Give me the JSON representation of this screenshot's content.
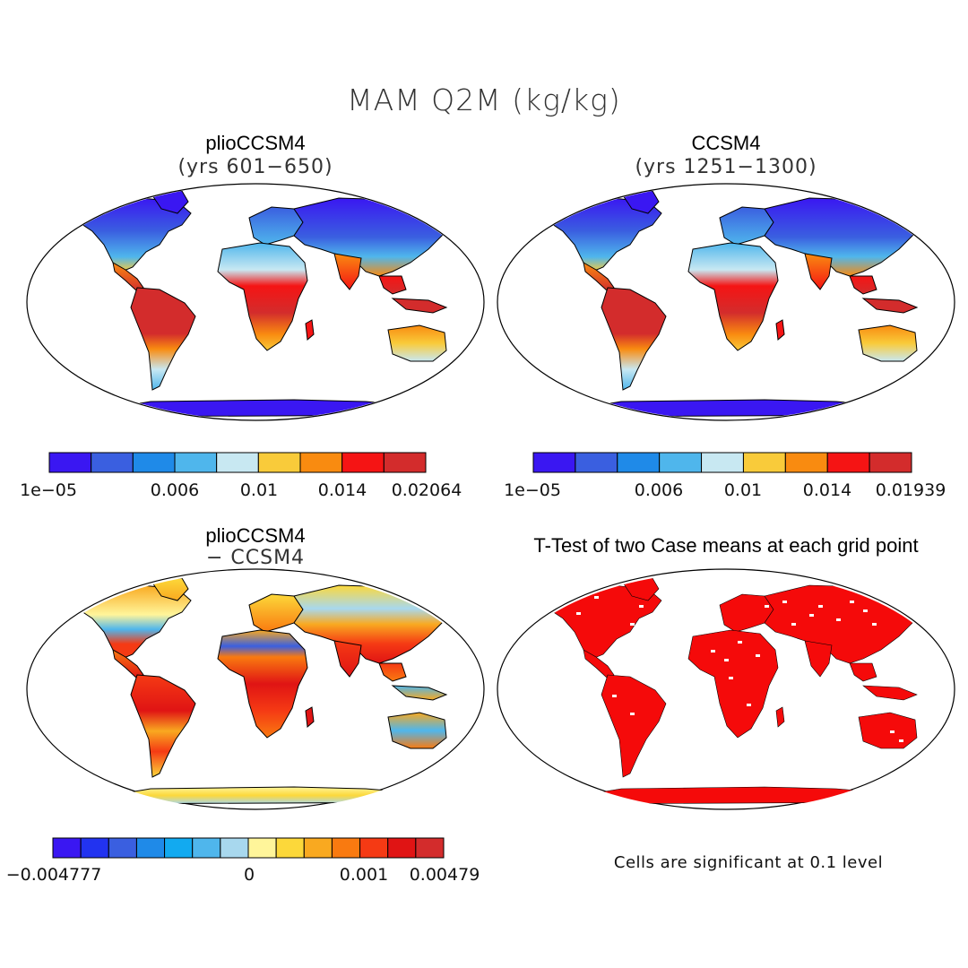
{
  "title": "MAM Q2M (kg/kg)",
  "panels": [
    {
      "title": "plioCCSM4",
      "subtitle": "(yrs 601−650)"
    },
    {
      "title": "CCSM4",
      "subtitle": "(yrs 1251−1300)"
    },
    {
      "title": "plioCCSM4",
      "subtitle": "− CCSM4"
    },
    {
      "title": "T-Test of two Case means at each grid point",
      "footnote": "Cells are significant at 0.1 level"
    }
  ],
  "chart_data": [
    {
      "type": "heatmap",
      "title": "plioCCSM4 (yrs 601−650)",
      "variable": "Q2M",
      "season": "MAM",
      "units": "kg/kg",
      "colorbar": {
        "colors": [
          "#3a17f2",
          "#3a5fe0",
          "#1f8ae8",
          "#4fb6ec",
          "#c8e8f2",
          "#f9cb3a",
          "#f98b10",
          "#f51414",
          "#d32c2c"
        ],
        "tick_labels": [
          "1e−05",
          "0.006",
          "0.01",
          "0.014",
          "0.02064"
        ],
        "tick_bin_edges": [
          0,
          3,
          4,
          5,
          6,
          7,
          8,
          9
        ],
        "range": [
          1e-05,
          0.02064
        ]
      }
    },
    {
      "type": "heatmap",
      "title": "CCSM4 (yrs 1251−1300)",
      "variable": "Q2M",
      "season": "MAM",
      "units": "kg/kg",
      "colorbar": {
        "colors": [
          "#3a17f2",
          "#3a5fe0",
          "#1f8ae8",
          "#4fb6ec",
          "#c8e8f2",
          "#f9cb3a",
          "#f98b10",
          "#f51414",
          "#d32c2c"
        ],
        "tick_labels": [
          "1e−05",
          "0.006",
          "0.01",
          "0.014",
          "0.01939"
        ],
        "range": [
          1e-05,
          0.01939
        ]
      }
    },
    {
      "type": "heatmap",
      "title": "plioCCSM4 − CCSM4",
      "variable": "Q2M difference",
      "units": "kg/kg",
      "colorbar": {
        "colors": [
          "#3a17f2",
          "#2233f0",
          "#3a5fe0",
          "#1f8ae8",
          "#12aaf0",
          "#4fb6ec",
          "#a8d8ee",
          "#fff59a",
          "#fcd83a",
          "#f9a920",
          "#f97a10",
          "#f53a14",
          "#e01414",
          "#d32c2c"
        ],
        "tick_labels": [
          "−0.004777",
          "0",
          "0.001",
          "0.00479"
        ],
        "range": [
          -0.004777,
          0.00479
        ]
      }
    },
    {
      "type": "heatmap",
      "title": "T-Test of two Case means at each grid point",
      "significance_level": 0.1,
      "significant_color": "#f50a0a",
      "note": "Cells are significant at 0.1 level"
    }
  ],
  "colors": {
    "ocean": "#ffffff",
    "coast": "#000000"
  }
}
